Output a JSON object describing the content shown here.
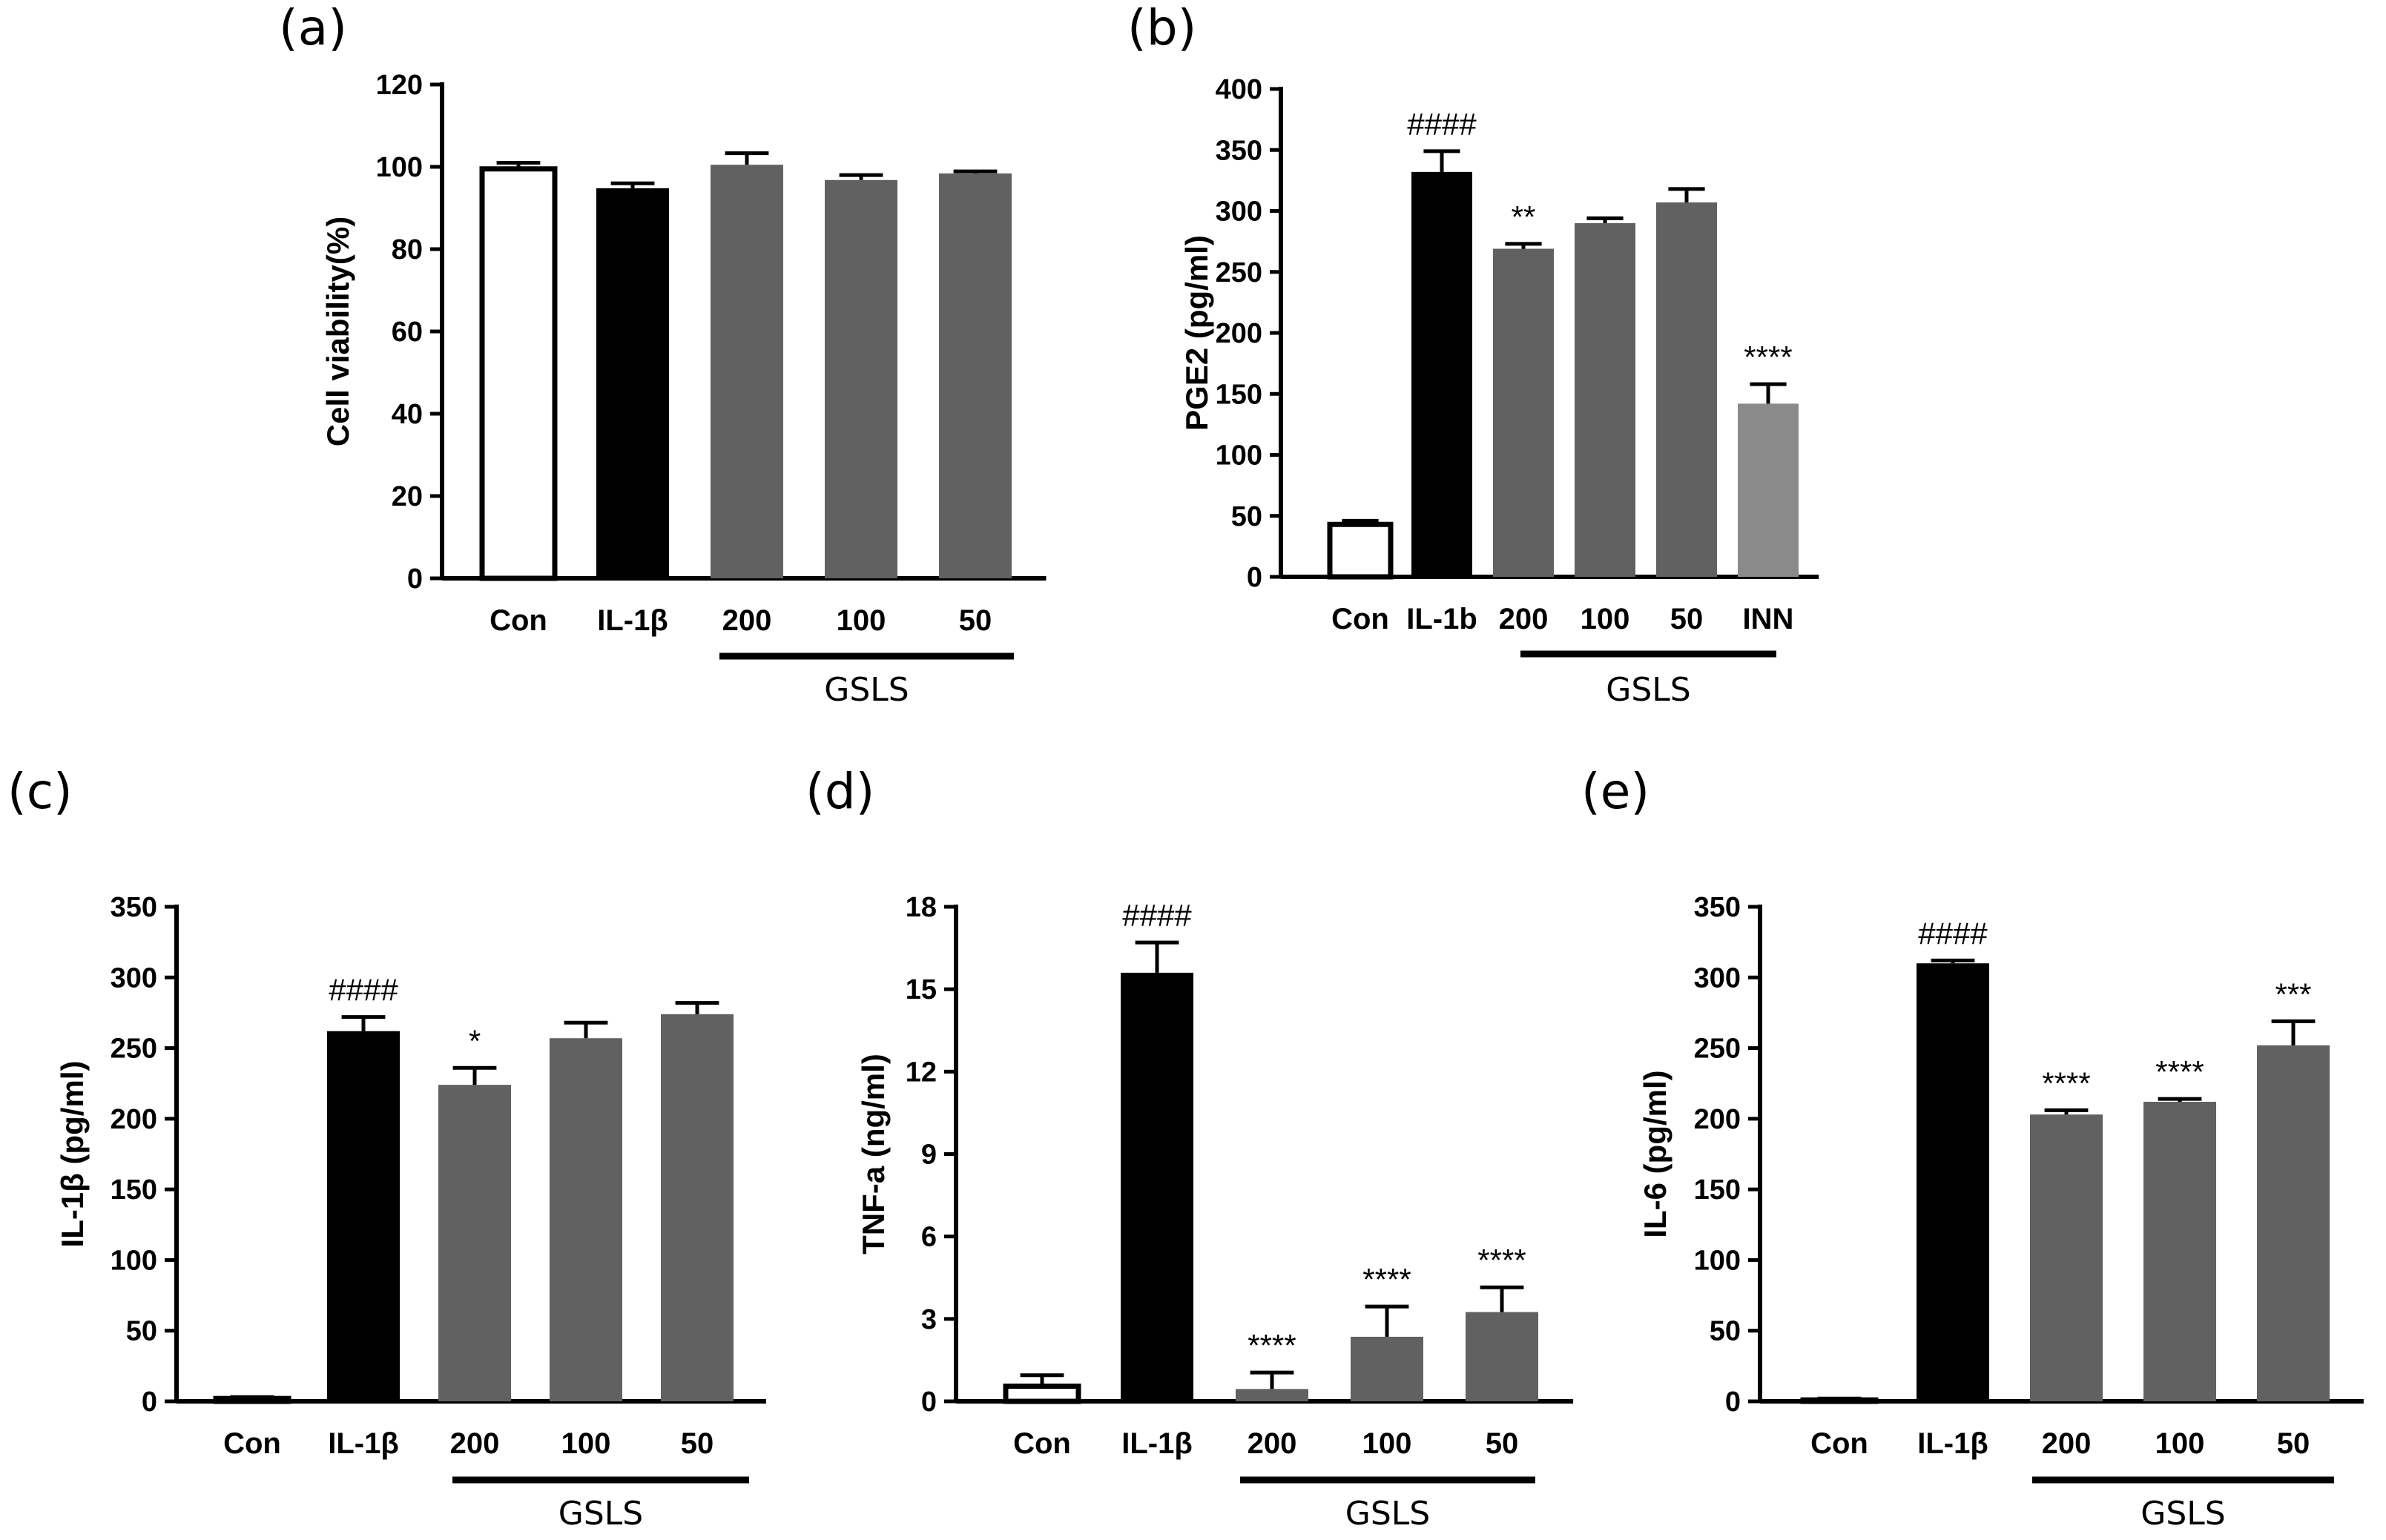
{
  "chart_data": [
    {
      "id": "a",
      "type": "bar",
      "panel_label": "(a)",
      "ylabel": "Cell viability(%)",
      "ylim": [
        0,
        120
      ],
      "yticks": [
        0,
        20,
        40,
        60,
        80,
        100,
        120
      ],
      "categories": [
        "Con",
        "IL-1β",
        "200",
        "100",
        "50"
      ],
      "values": [
        99.5,
        94.8,
        100.5,
        96.8,
        98.4
      ],
      "errors": [
        1.5,
        1.2,
        2.8,
        1.2,
        0.5
      ],
      "annotations": [
        "",
        "",
        "",
        "",
        ""
      ],
      "fills": [
        "#ffffff",
        "#000000",
        "#616161",
        "#616161",
        "#616161"
      ],
      "group": {
        "label": "GSLS",
        "from": 2,
        "to": 4
      }
    },
    {
      "id": "b",
      "type": "bar",
      "panel_label": "(b)",
      "ylabel": "PGE2 (pg/ml)",
      "ylim": [
        0,
        400
      ],
      "yticks": [
        0,
        50,
        100,
        150,
        200,
        250,
        300,
        350,
        400
      ],
      "categories": [
        "Con",
        "IL-1b",
        "200",
        "100",
        "50",
        "INN"
      ],
      "values": [
        43,
        332,
        269,
        290,
        307,
        142
      ],
      "errors": [
        3,
        17,
        4,
        4,
        11,
        16
      ],
      "annotations": [
        "",
        "####",
        "**",
        "",
        "",
        "****"
      ],
      "fills": [
        "#ffffff",
        "#000000",
        "#616161",
        "#616161",
        "#616161",
        "#8a8a8a"
      ],
      "group": {
        "label": "GSLS",
        "from": 2,
        "to": 4
      }
    },
    {
      "id": "c",
      "type": "bar",
      "panel_label": "(c)",
      "ylabel": "IL-1β (pg/ml)",
      "ylim": [
        0,
        350
      ],
      "yticks": [
        0,
        50,
        100,
        150,
        200,
        250,
        300,
        350
      ],
      "categories": [
        "Con",
        "IL-1β",
        "200",
        "100",
        "50"
      ],
      "values": [
        2,
        262,
        224,
        257,
        274
      ],
      "errors": [
        1,
        10,
        12,
        11,
        8
      ],
      "annotations": [
        "",
        "####",
        "*",
        "",
        ""
      ],
      "fills": [
        "#ffffff",
        "#000000",
        "#616161",
        "#616161",
        "#616161"
      ],
      "group": {
        "label": "GSLS",
        "from": 2,
        "to": 4
      }
    },
    {
      "id": "d",
      "type": "bar",
      "panel_label": "(d)",
      "ylabel": "TNF-a (ng/ml)",
      "ylim": [
        0,
        18
      ],
      "yticks": [
        0,
        3,
        6,
        9,
        12,
        15,
        18
      ],
      "categories": [
        "Con",
        "IL-1β",
        "200",
        "100",
        "50"
      ],
      "values": [
        0.55,
        15.6,
        0.45,
        2.35,
        3.25
      ],
      "errors": [
        0.4,
        1.1,
        0.6,
        1.1,
        0.9
      ],
      "annotations": [
        "",
        "####",
        "****",
        "****",
        "****"
      ],
      "fills": [
        "#ffffff",
        "#000000",
        "#616161",
        "#616161",
        "#616161"
      ],
      "group": {
        "label": "GSLS",
        "from": 2,
        "to": 4
      }
    },
    {
      "id": "e",
      "type": "bar",
      "panel_label": "(e)",
      "ylabel": "IL-6 (pg/ml)",
      "ylim": [
        0,
        350
      ],
      "yticks": [
        0,
        50,
        100,
        150,
        200,
        250,
        300,
        350
      ],
      "categories": [
        "Con",
        "IL-1β",
        "200",
        "100",
        "50"
      ],
      "values": [
        1,
        310,
        203,
        212,
        252
      ],
      "errors": [
        1,
        2,
        3,
        2,
        17
      ],
      "annotations": [
        "",
        "####",
        "****",
        "****",
        "***"
      ],
      "fills": [
        "#ffffff",
        "#000000",
        "#616161",
        "#616161",
        "#616161"
      ],
      "group": {
        "label": "GSLS",
        "from": 2,
        "to": 4
      }
    }
  ]
}
